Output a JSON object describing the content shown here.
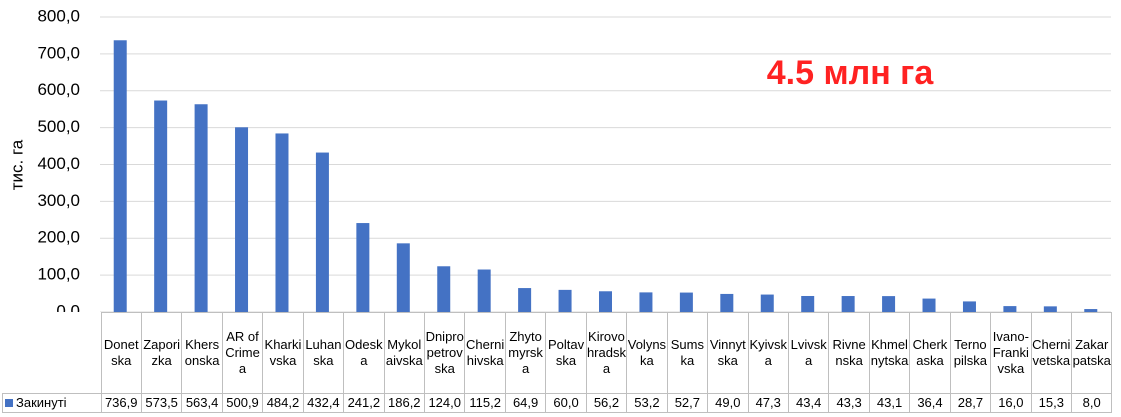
{
  "chart_data": {
    "type": "bar",
    "annotation": "4.5 млн га",
    "y_label": "тис. га",
    "categories": [
      "Donetska",
      "Zaporizka",
      "Khersonska",
      "AR of Crimea",
      "Kharkivska",
      "Luhanska",
      "Odeska",
      "Mykolaivska",
      "Dnipropetrovska",
      "Chernihivska",
      "Zhytomyrska",
      "Poltavska",
      "Kirovohradska",
      "Volynska",
      "Sumska",
      "Vinnytska",
      "Kyivska",
      "Lvivska",
      "Rivnenska",
      "Khmelnytska",
      "Cherkaska",
      "Ternopilska",
      "Ivano-Frankivska",
      "Chernivetska",
      "Zakarpatska"
    ],
    "series": [
      {
        "name": "Закинуті",
        "color": "#4472c4",
        "values": [
          736.9,
          573.5,
          563.4,
          500.9,
          484.2,
          432.4,
          241.2,
          186.2,
          124.0,
          115.2,
          64.9,
          60.0,
          56.2,
          53.2,
          52.7,
          49.0,
          47.3,
          43.4,
          43.3,
          43.1,
          36.4,
          28.7,
          16.0,
          15.3,
          8.0
        ],
        "value_labels": [
          "736,9",
          "573,5",
          "563,4",
          "500,9",
          "484,2",
          "432,4",
          "241,2",
          "186,2",
          "124,0",
          "115,2",
          "64,9",
          "60,0",
          "56,2",
          "53,2",
          "52,7",
          "49,0",
          "47,3",
          "43,4",
          "43,3",
          "43,1",
          "36,4",
          "28,7",
          "16,0",
          "15,3",
          "8,0"
        ]
      }
    ],
    "ylim": [
      0,
      800
    ],
    "yticks": [
      {
        "value": 0,
        "label": "0,0"
      },
      {
        "value": 100,
        "label": "100,0"
      },
      {
        "value": 200,
        "label": "200,0"
      },
      {
        "value": 300,
        "label": "300,0"
      },
      {
        "value": 400,
        "label": "400,0"
      },
      {
        "value": 500,
        "label": "500,0"
      },
      {
        "value": 600,
        "label": "600,0"
      },
      {
        "value": 700,
        "label": "700,0"
      },
      {
        "value": 800,
        "label": "800,0"
      }
    ],
    "grid": true
  }
}
